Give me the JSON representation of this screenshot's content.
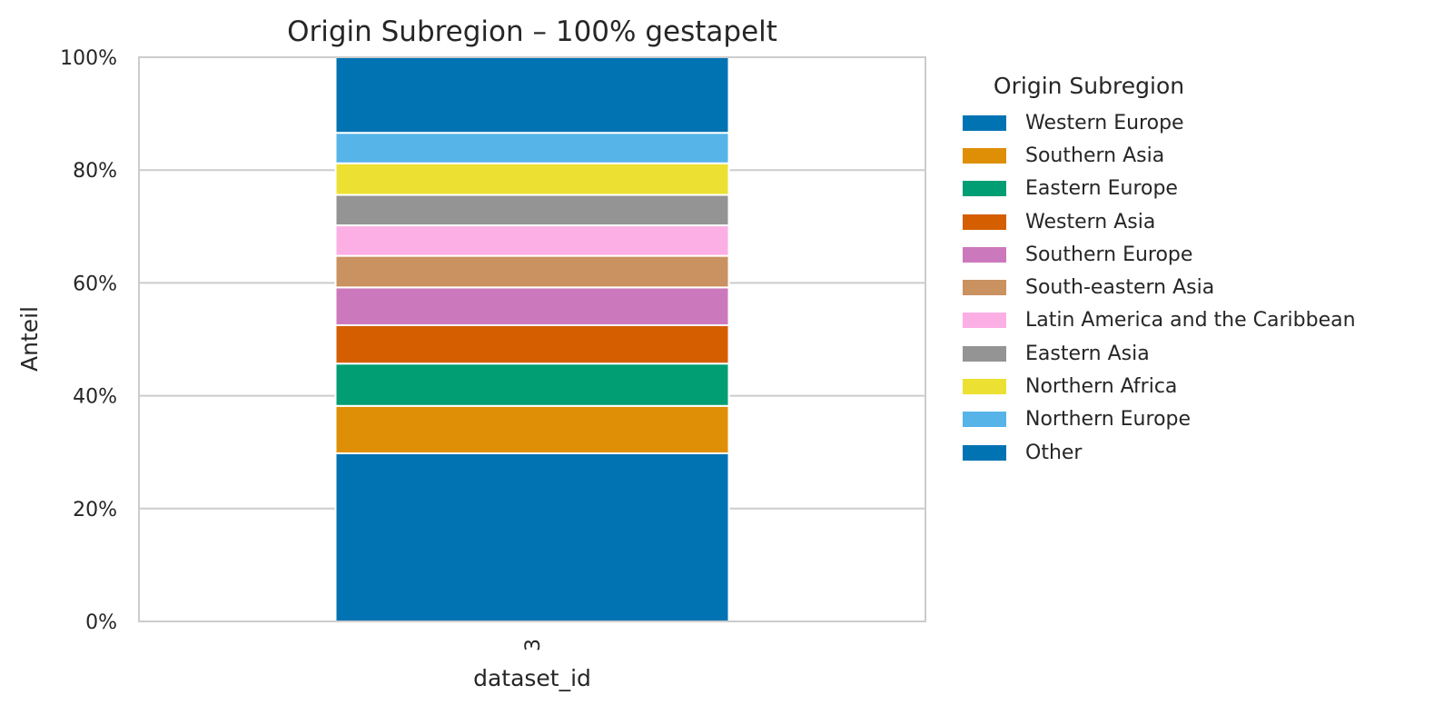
{
  "chart_data": {
    "type": "bar",
    "stacked": true,
    "normalized": true,
    "title": "Origin Subregion – 100% gestapelt",
    "xlabel": "dataset_id",
    "ylabel": "Anteil",
    "categories": [
      "3"
    ],
    "ylim": [
      0,
      100
    ],
    "yticks": [
      "0%",
      "20%",
      "40%",
      "60%",
      "80%",
      "100%"
    ],
    "grid": true,
    "legend_title": "Origin Subregion",
    "legend_position": "outside-right",
    "series": [
      {
        "name": "Western Europe",
        "color": "#0173b2",
        "values": [
          29.8
        ]
      },
      {
        "name": "Southern Asia",
        "color": "#de8f05",
        "values": [
          8.4
        ]
      },
      {
        "name": "Eastern Europe",
        "color": "#029e73",
        "values": [
          7.5
        ]
      },
      {
        "name": "Western Asia",
        "color": "#d55e00",
        "values": [
          6.8
        ]
      },
      {
        "name": "Southern Europe",
        "color": "#cc78bc",
        "values": [
          6.7
        ]
      },
      {
        "name": "South-eastern Asia",
        "color": "#ca9161",
        "values": [
          5.6
        ]
      },
      {
        "name": "Latin America and the Caribbean",
        "color": "#fbafe4",
        "values": [
          5.4
        ]
      },
      {
        "name": "Eastern Asia",
        "color": "#949494",
        "values": [
          5.4
        ]
      },
      {
        "name": "Northern Africa",
        "color": "#ece133",
        "values": [
          5.6
        ]
      },
      {
        "name": "Northern Europe",
        "color": "#56b4e9",
        "values": [
          5.4
        ]
      },
      {
        "name": "Other",
        "color": "#0173b2",
        "values": [
          13.4
        ]
      }
    ]
  }
}
